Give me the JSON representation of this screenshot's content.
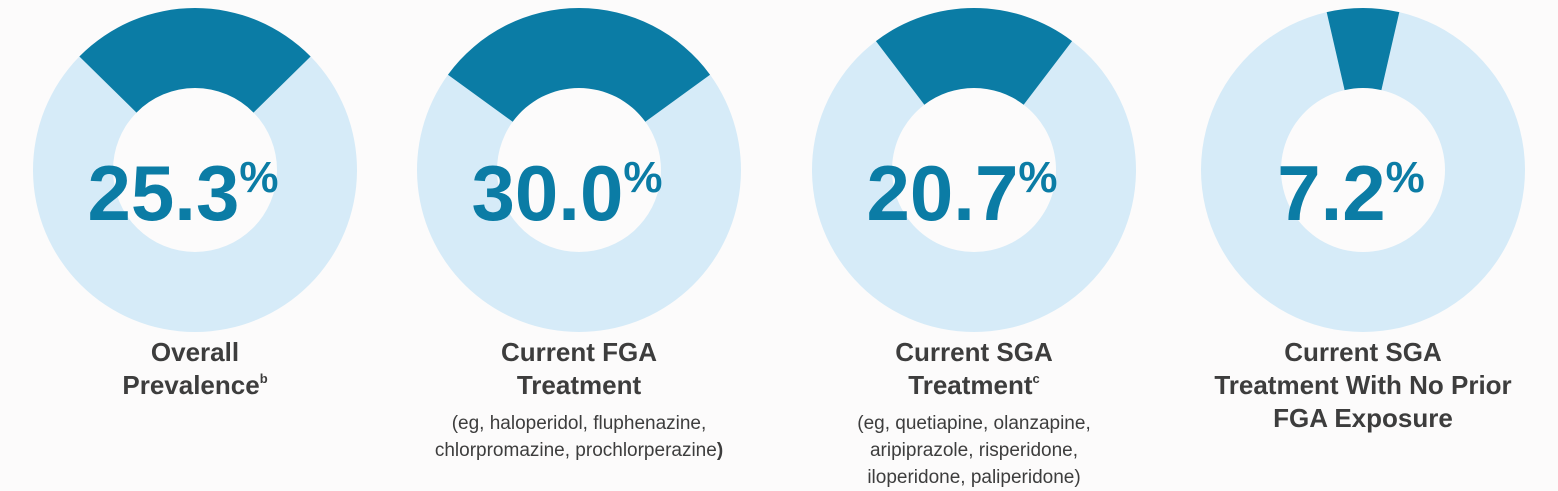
{
  "colors": {
    "filled": "#0b7ca5",
    "remaining": "#d6ebf8",
    "value_text": "#0b7ca5",
    "label_text": "#3d3d3d",
    "background": "#fcfbfb"
  },
  "chart_data": [
    {
      "type": "pie",
      "variant": "donut",
      "value": 25.3,
      "value_text": "25.3",
      "unit": "%",
      "label_lines": [
        "Overall",
        "Prevalence"
      ],
      "label_superscript": "b",
      "examples_lines": []
    },
    {
      "type": "pie",
      "variant": "donut",
      "value": 30.0,
      "value_text": "30.0",
      "unit": "%",
      "label_lines": [
        "Current FGA",
        "Treatment"
      ],
      "label_superscript": "",
      "examples_lines": [
        "(eg, haloperidol, fluphenazine,",
        "chlorpromazine, prochlorperazine"
      ],
      "examples_close": ")"
    },
    {
      "type": "pie",
      "variant": "donut",
      "value": 20.7,
      "value_text": "20.7",
      "unit": "%",
      "label_lines": [
        "Current SGA",
        "Treatment"
      ],
      "label_superscript": "c",
      "examples_lines": [
        "(eg, quetiapine, olanzapine,",
        "aripiprazole, risperidone,",
        "iloperidone, paliperidone)"
      ]
    },
    {
      "type": "pie",
      "variant": "donut",
      "value": 7.2,
      "value_text": "7.2",
      "unit": "%",
      "label_lines": [
        "Current SGA",
        "Treatment With No Prior",
        "FGA Exposure"
      ],
      "label_superscript": "",
      "examples_lines": []
    }
  ]
}
